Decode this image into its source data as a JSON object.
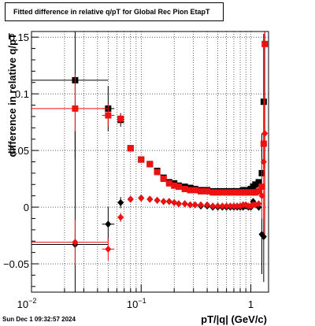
{
  "chart_data": {
    "type": "scatter",
    "title": "Fitted difference in relative q/pT for Global Rec Pion EtapT",
    "xlabel": "pT/|q| (GeV/c)",
    "ylabel": "difference in relative q/pT",
    "xscale": "log",
    "xlim": [
      0.01,
      1.45
    ],
    "ylim": [
      -0.075,
      0.155
    ],
    "grid": true,
    "x_ticks": [
      {
        "value": 0.01,
        "label": "10",
        "sup": "−2"
      },
      {
        "value": 0.1,
        "label": "10",
        "sup": "−1"
      },
      {
        "value": 1,
        "label": "1",
        "sup": ""
      }
    ],
    "y_ticks": [
      {
        "value": -0.05,
        "label": "−0.05"
      },
      {
        "value": 0,
        "label": "0"
      },
      {
        "value": 0.05,
        "label": "0.05"
      },
      {
        "value": 0.1,
        "label": "0.1"
      },
      {
        "value": 0.15,
        "label": "0.15"
      }
    ],
    "series": [
      {
        "color": "#000000",
        "marker": "square",
        "points": [
          {
            "x": 0.025,
            "y": 0.112,
            "xerr": [
              0.015,
              0.025
            ],
            "yerr": 0.07
          },
          {
            "x": 0.05,
            "y": 0.087,
            "xerr": [
              0.006,
              0.007
            ],
            "yerr": 0.02
          },
          {
            "x": 0.065,
            "y": 0.077,
            "xerr": [
              0.004,
              0.004
            ],
            "yerr": 0.006
          },
          {
            "x": 0.08,
            "y": 0.052
          },
          {
            "x": 0.1,
            "y": 0.042
          },
          {
            "x": 0.12,
            "y": 0.038
          },
          {
            "x": 0.14,
            "y": 0.032
          },
          {
            "x": 0.16,
            "y": 0.026
          },
          {
            "x": 0.18,
            "y": 0.022
          },
          {
            "x": 0.2,
            "y": 0.021
          },
          {
            "x": 0.22,
            "y": 0.019
          },
          {
            "x": 0.25,
            "y": 0.018
          },
          {
            "x": 0.28,
            "y": 0.017
          },
          {
            "x": 0.31,
            "y": 0.016
          },
          {
            "x": 0.35,
            "y": 0.015
          },
          {
            "x": 0.4,
            "y": 0.015
          },
          {
            "x": 0.45,
            "y": 0.014
          },
          {
            "x": 0.5,
            "y": 0.014
          },
          {
            "x": 0.55,
            "y": 0.014
          },
          {
            "x": 0.6,
            "y": 0.014
          },
          {
            "x": 0.65,
            "y": 0.014
          },
          {
            "x": 0.7,
            "y": 0.014
          },
          {
            "x": 0.75,
            "y": 0.014
          },
          {
            "x": 0.8,
            "y": 0.014
          },
          {
            "x": 0.85,
            "y": 0.015
          },
          {
            "x": 0.9,
            "y": 0.015
          },
          {
            "x": 0.95,
            "y": 0.014
          },
          {
            "x": 1.0,
            "y": 0.016
          },
          {
            "x": 1.05,
            "y": 0.018
          },
          {
            "x": 1.1,
            "y": 0.02
          },
          {
            "x": 1.18,
            "y": 0.022
          },
          {
            "x": 1.26,
            "y": 0.03,
            "yerr": 0.035
          },
          {
            "x": 1.31,
            "y": 0.093,
            "yerr": 0.06
          }
        ]
      },
      {
        "color": "#ee1111",
        "marker": "square",
        "points": [
          {
            "x": 0.025,
            "y": 0.087,
            "xerr": [
              0.015,
              0.025
            ],
            "yerr": 0.03
          },
          {
            "x": 0.05,
            "y": 0.081,
            "xerr": [
              0.006,
              0.007
            ],
            "yerr": 0.01
          },
          {
            "x": 0.065,
            "y": 0.078,
            "xerr": [
              0.004,
              0.004
            ],
            "yerr": 0.004
          },
          {
            "x": 0.08,
            "y": 0.052
          },
          {
            "x": 0.1,
            "y": 0.042
          },
          {
            "x": 0.12,
            "y": 0.038
          },
          {
            "x": 0.14,
            "y": 0.031
          },
          {
            "x": 0.16,
            "y": 0.025
          },
          {
            "x": 0.18,
            "y": 0.021
          },
          {
            "x": 0.2,
            "y": 0.019
          },
          {
            "x": 0.22,
            "y": 0.018
          },
          {
            "x": 0.25,
            "y": 0.016
          },
          {
            "x": 0.28,
            "y": 0.015
          },
          {
            "x": 0.31,
            "y": 0.015
          },
          {
            "x": 0.35,
            "y": 0.014
          },
          {
            "x": 0.4,
            "y": 0.014
          },
          {
            "x": 0.45,
            "y": 0.013
          },
          {
            "x": 0.5,
            "y": 0.013
          },
          {
            "x": 0.55,
            "y": 0.013
          },
          {
            "x": 0.6,
            "y": 0.013
          },
          {
            "x": 0.65,
            "y": 0.013
          },
          {
            "x": 0.7,
            "y": 0.013
          },
          {
            "x": 0.75,
            "y": 0.013
          },
          {
            "x": 0.8,
            "y": 0.013
          },
          {
            "x": 0.85,
            "y": 0.013
          },
          {
            "x": 0.9,
            "y": 0.013
          },
          {
            "x": 0.95,
            "y": 0.013
          },
          {
            "x": 1.0,
            "y": 0.013
          },
          {
            "x": 1.05,
            "y": 0.013
          },
          {
            "x": 1.1,
            "y": 0.013
          },
          {
            "x": 1.18,
            "y": 0.014
          },
          {
            "x": 1.26,
            "y": 0.018,
            "yerr": 0.02
          },
          {
            "x": 1.31,
            "y": 0.056,
            "yerr": 0.04
          },
          {
            "x": 1.34,
            "y": 0.144,
            "yerr": 0.11
          }
        ]
      },
      {
        "color": "#000000",
        "marker": "diamond",
        "points": [
          {
            "x": 0.025,
            "y": -0.033,
            "xerr": [
              0.015,
              0.025
            ],
            "yerr": 0.1
          },
          {
            "x": 0.05,
            "y": -0.015,
            "xerr": [
              0.006,
              0.007
            ],
            "yerr": 0.015
          },
          {
            "x": 0.065,
            "y": 0.004,
            "xerr": [
              0.004,
              0.004
            ],
            "yerr": 0.005
          },
          {
            "x": 0.08,
            "y": 0.007
          },
          {
            "x": 0.1,
            "y": 0.008
          },
          {
            "x": 0.12,
            "y": 0.007
          },
          {
            "x": 0.14,
            "y": 0.006
          },
          {
            "x": 0.16,
            "y": 0.005
          },
          {
            "x": 0.18,
            "y": 0.005
          },
          {
            "x": 0.2,
            "y": 0.004
          },
          {
            "x": 0.22,
            "y": 0.003
          },
          {
            "x": 0.25,
            "y": 0.003
          },
          {
            "x": 0.28,
            "y": 0.002
          },
          {
            "x": 0.31,
            "y": 0.002
          },
          {
            "x": 0.35,
            "y": 0.001
          },
          {
            "x": 0.4,
            "y": 0.001
          },
          {
            "x": 0.45,
            "y": 0.0
          },
          {
            "x": 0.5,
            "y": 0.0
          },
          {
            "x": 0.55,
            "y": 0.0
          },
          {
            "x": 0.6,
            "y": 0.0
          },
          {
            "x": 0.65,
            "y": 0.0
          },
          {
            "x": 0.7,
            "y": 0.0
          },
          {
            "x": 0.75,
            "y": 0.0
          },
          {
            "x": 0.8,
            "y": 0.0
          },
          {
            "x": 0.85,
            "y": 0.0
          },
          {
            "x": 0.9,
            "y": 0.001
          },
          {
            "x": 0.95,
            "y": 0.0
          },
          {
            "x": 1.0,
            "y": 0.0
          },
          {
            "x": 1.05,
            "y": 0.005
          },
          {
            "x": 1.1,
            "y": 0.002
          },
          {
            "x": 1.18,
            "y": 0.0
          },
          {
            "x": 1.26,
            "y": -0.024,
            "yerr": 0.035
          },
          {
            "x": 1.31,
            "y": -0.026,
            "yerr": 0.04
          }
        ]
      },
      {
        "color": "#ee1111",
        "marker": "diamond",
        "points": [
          {
            "x": 0.025,
            "y": -0.031,
            "xerr": [
              0.015,
              0.025
            ],
            "yerr": 0.02
          },
          {
            "x": 0.05,
            "y": -0.037,
            "xerr": [
              0.006,
              0.007
            ],
            "yerr": 0.01
          },
          {
            "x": 0.065,
            "y": -0.009,
            "xerr": [
              0.004,
              0.004
            ],
            "yerr": 0.004
          },
          {
            "x": 0.08,
            "y": 0.007
          },
          {
            "x": 0.1,
            "y": 0.008
          },
          {
            "x": 0.12,
            "y": 0.007
          },
          {
            "x": 0.14,
            "y": 0.006
          },
          {
            "x": 0.16,
            "y": 0.005
          },
          {
            "x": 0.18,
            "y": 0.005
          },
          {
            "x": 0.2,
            "y": 0.004
          },
          {
            "x": 0.22,
            "y": 0.003
          },
          {
            "x": 0.25,
            "y": 0.003
          },
          {
            "x": 0.28,
            "y": 0.002
          },
          {
            "x": 0.31,
            "y": 0.002
          },
          {
            "x": 0.35,
            "y": 0.002
          },
          {
            "x": 0.4,
            "y": 0.002
          },
          {
            "x": 0.45,
            "y": 0.001
          },
          {
            "x": 0.5,
            "y": 0.001
          },
          {
            "x": 0.55,
            "y": 0.001
          },
          {
            "x": 0.6,
            "y": 0.001
          },
          {
            "x": 0.65,
            "y": 0.001
          },
          {
            "x": 0.7,
            "y": 0.001
          },
          {
            "x": 0.75,
            "y": 0.001
          },
          {
            "x": 0.8,
            "y": 0.001
          },
          {
            "x": 0.85,
            "y": 0.002
          },
          {
            "x": 0.9,
            "y": 0.002
          },
          {
            "x": 0.95,
            "y": 0.001
          },
          {
            "x": 1.0,
            "y": 0.001
          },
          {
            "x": 1.05,
            "y": 0.002
          },
          {
            "x": 1.1,
            "y": 0.002
          },
          {
            "x": 1.18,
            "y": 0.003
          },
          {
            "x": 1.26,
            "y": 0.01,
            "yerr": 0.02
          },
          {
            "x": 1.31,
            "y": 0.04,
            "yerr": 0.05
          },
          {
            "x": 1.34,
            "y": 0.065,
            "yerr": 0.09
          }
        ]
      }
    ]
  },
  "footer": {
    "timestamp": "Sun Dec  1 09:32:57 2024"
  }
}
